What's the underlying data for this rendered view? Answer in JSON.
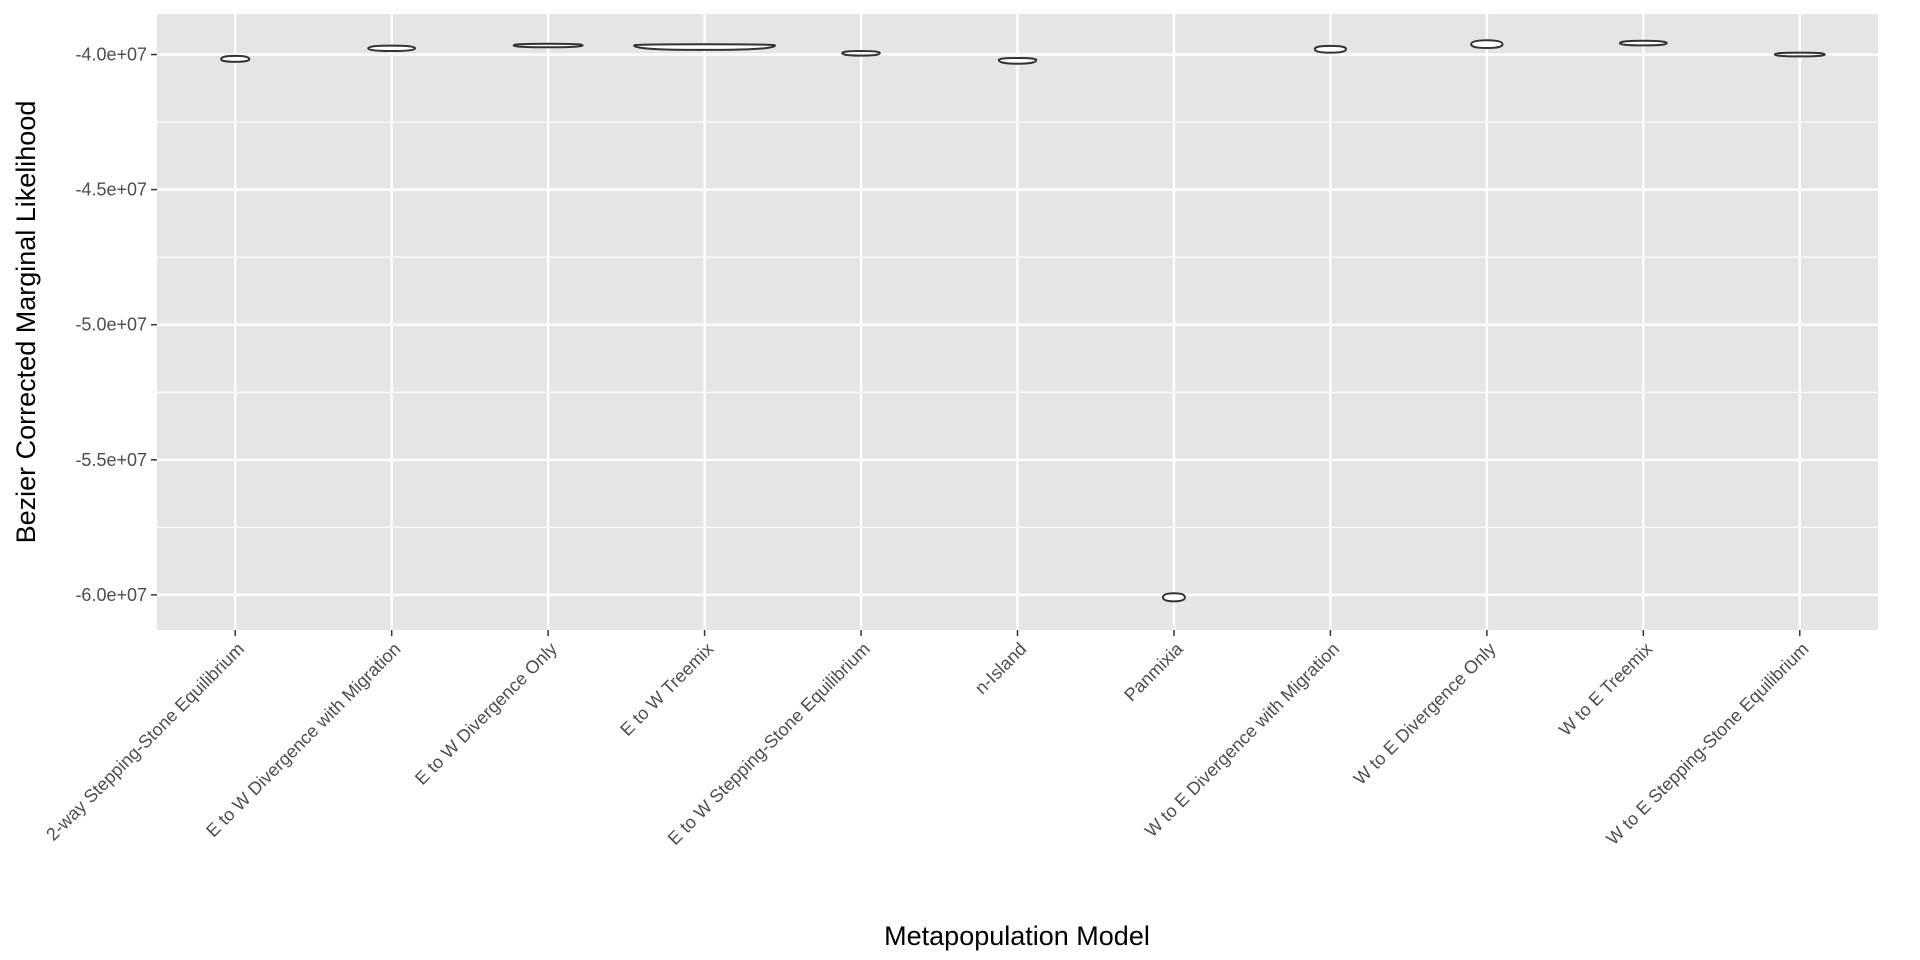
{
  "chart_data": {
    "type": "violin",
    "title": "",
    "xlabel": "Metapopulation Model",
    "ylabel": "Bezier Corrected Marginal Likelihood",
    "ylim": [
      -61300000,
      -38500000
    ],
    "y_ticks": [
      -60000000,
      -55000000,
      -50000000,
      -45000000,
      -40000000
    ],
    "y_tick_labels": [
      "-6.0e+07",
      "-5.5e+07",
      "-5.0e+07",
      "-4.5e+07",
      "-4.0e+07"
    ],
    "grid": true,
    "legend": "none",
    "categories": [
      "2-way Stepping-Stone Equilibrium",
      "E to W Divergence with Migration",
      "E to W Divergence Only",
      "E to W Treemix",
      "E to W Stepping-Stone Equilibrium",
      "n-Island",
      "Panmixia",
      "W to E Divergence with Migration",
      "W to E Divergence Only",
      "W to E Treemix",
      "W to E Stepping-Stone Equilibrium"
    ],
    "violins": [
      {
        "category": "2-way Stepping-Stone Equilibrium",
        "min": -40270000,
        "max": -40050000,
        "median": -40170000,
        "max_half_width": 0.09
      },
      {
        "category": "E to W Divergence with Migration",
        "min": -39870000,
        "max": -39670000,
        "median": -39770000,
        "max_half_width": 0.15
      },
      {
        "category": "E to W Divergence Only",
        "min": -39730000,
        "max": -39600000,
        "median": -39660000,
        "max_half_width": 0.22
      },
      {
        "category": "E to W Treemix",
        "min": -39830000,
        "max": -39620000,
        "median": -39660000,
        "max_half_width": 0.45
      },
      {
        "category": "E to W Stepping-Stone Equilibrium",
        "min": -40040000,
        "max": -39870000,
        "median": -39950000,
        "max_half_width": 0.12
      },
      {
        "category": "n-Island",
        "min": -40340000,
        "max": -40130000,
        "median": -40200000,
        "max_half_width": 0.12
      },
      {
        "category": "Panmixia",
        "min": -60240000,
        "max": -59940000,
        "median": -60090000,
        "max_half_width": 0.07
      },
      {
        "category": "W to E Divergence with Migration",
        "min": -39930000,
        "max": -39680000,
        "median": -39800000,
        "max_half_width": 0.1
      },
      {
        "category": "W to E Divergence Only",
        "min": -39760000,
        "max": -39470000,
        "median": -39620000,
        "max_half_width": 0.1
      },
      {
        "category": "W to E Treemix",
        "min": -39660000,
        "max": -39490000,
        "median": -39580000,
        "max_half_width": 0.15
      },
      {
        "category": "W to E Stepping-Stone Equilibrium",
        "min": -40070000,
        "max": -39930000,
        "median": -40000000,
        "max_half_width": 0.16
      }
    ],
    "colors": {
      "panel_background": "#e5e5e5",
      "grid": "#ffffff",
      "violin_fill": "#ffffff",
      "violin_outline": "#333333",
      "tick_text": "#4d4d4d",
      "tick_mark": "#333333"
    }
  }
}
